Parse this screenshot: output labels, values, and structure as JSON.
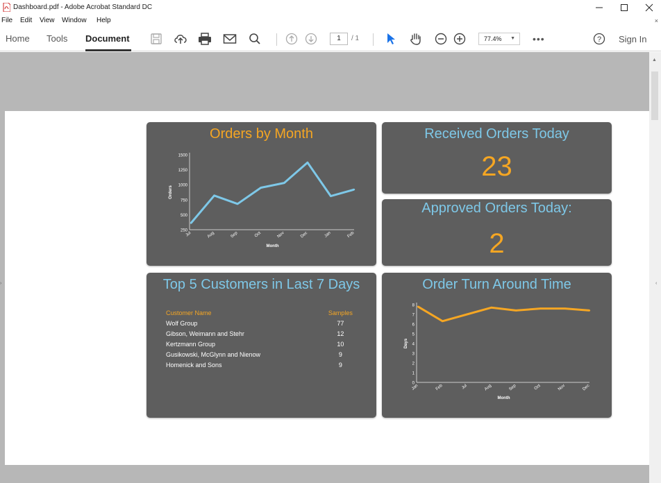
{
  "window": {
    "title": "Dashboard.pdf - Adobe Acrobat Standard DC"
  },
  "menu": [
    "File",
    "Edit",
    "View",
    "Window",
    "Help"
  ],
  "toolbar": {
    "tabs": [
      "Home",
      "Tools",
      "Document"
    ],
    "active_tab": "Document",
    "page_current": "1",
    "page_total": "/ 1",
    "zoom": "77.4%",
    "sign_in": "Sign In",
    "icons": [
      "save-icon",
      "upload-icon",
      "print-icon",
      "email-icon",
      "search-icon",
      "prev-page-icon",
      "next-page-icon",
      "select-cursor-icon",
      "hand-tool-icon",
      "zoom-out-icon",
      "zoom-in-icon",
      "more-icon",
      "help-icon"
    ]
  },
  "colors": {
    "panel_bg": "#5e5e5e",
    "accent_orange": "#f5a623",
    "accent_blue": "#7ec8e8",
    "doc_bg": "#b7b7b7"
  },
  "dashboard": {
    "orders_by_month": {
      "title": "Orders by Month",
      "chart_data": {
        "type": "line",
        "title": "Orders by Month",
        "xlabel": "Month",
        "ylabel": "Orders",
        "x": [
          "Jul",
          "Aug",
          "Sep",
          "Oct",
          "Nov",
          "Dec",
          "Jan",
          "Feb"
        ],
        "values": [
          360,
          820,
          680,
          950,
          1030,
          1370,
          810,
          920
        ],
        "yticks": [
          "1500",
          "1250",
          "1000",
          "750",
          "500",
          "250"
        ],
        "ylim": [
          250,
          1500
        ],
        "series_color": "#7ec8e8"
      }
    },
    "received_today": {
      "title": "Received Orders Today",
      "value": "23"
    },
    "approved_today": {
      "title": "Approved Orders Today:",
      "value": "2"
    },
    "top_customers": {
      "title": "Top 5 Customers in Last 7 Days",
      "headers": [
        "Customer Name",
        "Samples"
      ],
      "rows": [
        [
          "Wolf Group",
          "77"
        ],
        [
          "Gibson, Weimann and Stehr",
          "12"
        ],
        [
          "Kertzmann Group",
          "10"
        ],
        [
          "Gusikowski, McGlynn and Nienow",
          "9"
        ],
        [
          "Homenick and Sons",
          "9"
        ]
      ]
    },
    "turnaround": {
      "title": "Order Turn Around Time",
      "chart_data": {
        "type": "line",
        "title": "Order Turn Around Time",
        "xlabel": "Month",
        "ylabel": "Days",
        "x": [
          "Jan",
          "Feb",
          "Jul",
          "Aug",
          "Sep",
          "Oct",
          "Nov",
          "Dec"
        ],
        "values": [
          7.8,
          6.3,
          7.0,
          7.7,
          7.4,
          7.6,
          7.6,
          7.4
        ],
        "yticks": [
          "8",
          "7",
          "6",
          "5",
          "4",
          "3",
          "2",
          "1",
          "0"
        ],
        "ylim": [
          0,
          8
        ],
        "series_color": "#f5a623"
      }
    }
  }
}
